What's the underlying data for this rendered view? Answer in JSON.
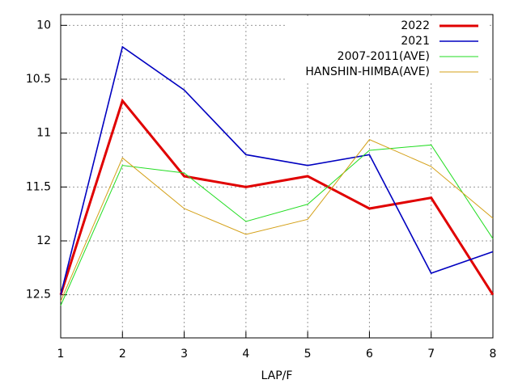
{
  "chart_data": {
    "type": "line",
    "xlabel": "LAP/F",
    "x": [
      1,
      2,
      3,
      4,
      5,
      6,
      7,
      8
    ],
    "xlim": [
      1,
      8
    ],
    "xticks": [
      1,
      2,
      3,
      4,
      5,
      6,
      7,
      8
    ],
    "ylim": [
      12.9,
      9.9
    ],
    "yticks": [
      10,
      10.5,
      11,
      11.5,
      12,
      12.5
    ],
    "grid": true,
    "legend": "top-right",
    "series": [
      {
        "name": "2022",
        "color": "#e00000",
        "width": 3,
        "values": [
          12.5,
          10.7,
          11.4,
          11.5,
          11.4,
          11.7,
          11.6,
          12.5
        ]
      },
      {
        "name": "2021",
        "color": "#0000c0",
        "width": 1.6,
        "values": [
          12.5,
          10.2,
          10.6,
          11.2,
          11.3,
          11.2,
          12.3,
          12.1
        ]
      },
      {
        "name": "2007-2011(AVE)",
        "color": "#22dd22",
        "width": 1,
        "values": [
          12.6,
          11.3,
          11.37,
          11.82,
          11.66,
          11.16,
          11.11,
          11.98
        ]
      },
      {
        "name": "HANSHIN-HIMBA(AVE)",
        "color": "#d4a017",
        "width": 1,
        "values": [
          12.56,
          11.23,
          11.7,
          11.94,
          11.8,
          11.06,
          11.31,
          11.79
        ]
      }
    ]
  }
}
